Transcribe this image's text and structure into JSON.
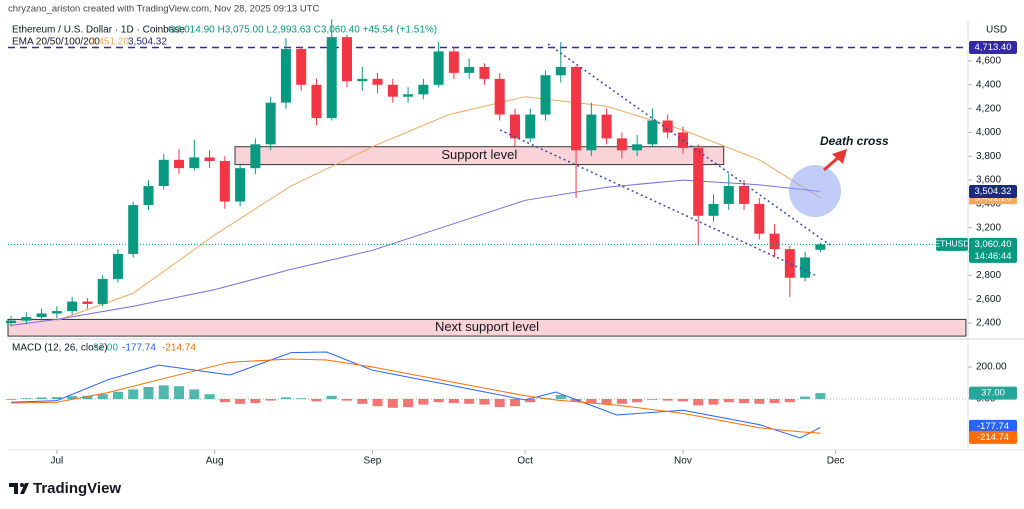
{
  "header": {
    "credit": "chryzano_ariston created with TradingView.com, Nov 28, 2025 09:13 UTC",
    "symbol": "Ethereum / U.S. Dollar · 1D · Coinbase",
    "ohlc": "O3,014.90 H3,075.00 L2,993.63 C3,060.40 +45.54 (+1.51%)",
    "indicator": "EMA 20/50/100/200"
  },
  "chart_data": [
    {
      "type": "candlestick",
      "currency": "USD",
      "x": [
        -9,
        -6,
        -3,
        0,
        3,
        6,
        9,
        12,
        15,
        18,
        21,
        24,
        27,
        30,
        33,
        36,
        39,
        42,
        45,
        48,
        51,
        54,
        57,
        60,
        63,
        66,
        69,
        72,
        75,
        78,
        81,
        84,
        87,
        90,
        93,
        96,
        99,
        102,
        105,
        108,
        111,
        114,
        117,
        120,
        123,
        126,
        129,
        132,
        135,
        138,
        141,
        144,
        147,
        150
      ],
      "open": [
        2400,
        2420,
        2450,
        2480,
        2500,
        2580,
        2560,
        2770,
        2980,
        3390,
        3550,
        3770,
        3700,
        3790,
        3760,
        3420,
        3700,
        3900,
        4250,
        4700,
        4400,
        4120,
        4800,
        4430,
        4450,
        4400,
        4300,
        4320,
        4400,
        4680,
        4500,
        4550,
        4450,
        4150,
        3950,
        4150,
        4480,
        4550,
        3850,
        4150,
        3950,
        3850,
        3900,
        4100,
        4000,
        3870,
        3300,
        3400,
        3550,
        3400,
        3150,
        3020,
        2780,
        3014.9
      ],
      "high": [
        2460,
        2490,
        2520,
        2540,
        2620,
        2610,
        2800,
        3020,
        3420,
        3600,
        3820,
        3860,
        3940,
        3850,
        3800,
        3740,
        3950,
        4300,
        4790,
        4720,
        4450,
        4950,
        4820,
        4550,
        4500,
        4450,
        4380,
        4450,
        4760,
        4720,
        4620,
        4580,
        4500,
        4200,
        4200,
        4520,
        4760,
        4560,
        4250,
        4200,
        4000,
        3980,
        4200,
        4150,
        4050,
        3900,
        3480,
        3650,
        3600,
        3450,
        3230,
        3050,
        3000,
        3075
      ],
      "low": [
        2370,
        2390,
        2420,
        2440,
        2470,
        2520,
        2540,
        2740,
        2950,
        3350,
        3520,
        3650,
        3680,
        3700,
        3360,
        3380,
        3650,
        3850,
        4200,
        4350,
        4060,
        4100,
        4380,
        4350,
        4330,
        4250,
        4250,
        4280,
        4380,
        4450,
        4450,
        4400,
        4100,
        3880,
        3920,
        4100,
        4420,
        3450,
        3800,
        3900,
        3780,
        3800,
        3880,
        3950,
        3820,
        3050,
        3250,
        3350,
        3350,
        3100,
        2950,
        2620,
        2750,
        2993.63
      ],
      "close": [
        2420,
        2450,
        2480,
        2500,
        2580,
        2560,
        2770,
        2980,
        3390,
        3550,
        3770,
        3700,
        3790,
        3760,
        3420,
        3700,
        3900,
        4250,
        4700,
        4400,
        4120,
        4800,
        4430,
        4450,
        4400,
        4300,
        4320,
        4400,
        4680,
        4500,
        4550,
        4450,
        4150,
        3950,
        4150,
        4480,
        4550,
        3850,
        4150,
        3950,
        3850,
        3900,
        4100,
        4000,
        3870,
        3300,
        3400,
        3550,
        3400,
        3150,
        3020,
        2780,
        2950,
        3060.4
      ],
      "up_color": "#089981",
      "down_color": "#f23645",
      "xlim": [
        -9.6,
        179
      ],
      "xticks": [
        {
          "value": 0,
          "label": "Jul"
        },
        {
          "value": 31,
          "label": "Aug"
        },
        {
          "value": 62,
          "label": "Sep"
        },
        {
          "value": 92,
          "label": "Oct"
        },
        {
          "value": 123,
          "label": "Nov"
        },
        {
          "value": 153,
          "label": "Dec"
        }
      ],
      "ylim": [
        2274,
        4944
      ],
      "yticks": [
        {
          "value": 2400,
          "label": "2,400"
        },
        {
          "value": 2600,
          "label": "2,600"
        },
        {
          "value": 2800,
          "label": "2,800"
        },
        {
          "value": 3000,
          "label": "3,000"
        },
        {
          "value": 3200,
          "label": "3,200"
        },
        {
          "value": 3400,
          "label": "3,400"
        },
        {
          "value": 3600,
          "label": "3,600"
        },
        {
          "value": 3800,
          "label": "3,800"
        },
        {
          "value": 4000,
          "label": "4,000"
        },
        {
          "value": 4200,
          "label": "4,200"
        },
        {
          "value": 4400,
          "label": "4,400"
        },
        {
          "value": 4600,
          "label": "4,600"
        }
      ],
      "lines": [
        {
          "color": "#f5a85f",
          "tag_color": "#f5a85f",
          "x": [
            0,
            15,
            31,
            46,
            62,
            77,
            92,
            108,
            123,
            138,
            150
          ],
          "values": [
            2420,
            2650,
            3140,
            3550,
            3880,
            4150,
            4300,
            4220,
            4020,
            3770,
            3451.2
          ],
          "last_label": "3,451.20"
        },
        {
          "color": "#7b6fe0",
          "tag_color": "#1b2a7a",
          "x": [
            -9,
            0,
            15,
            31,
            46,
            62,
            77,
            92,
            108,
            123,
            138,
            150
          ],
          "values": [
            2380,
            2430,
            2540,
            2680,
            2850,
            3010,
            3220,
            3430,
            3540,
            3600,
            3560,
            3504.32
          ],
          "last_label": "3,504.32"
        }
      ],
      "high_line": {
        "value": 4713.4,
        "label": "4,713.40",
        "color": "#3328a8"
      },
      "last_price": {
        "symbol": "ETHUSD",
        "label": "3,060.40",
        "countdown": "14:46:44"
      },
      "zones": [
        {
          "label": "Support level",
          "range": [
            3730,
            3880
          ],
          "xrange": [
            35,
            131
          ]
        },
        {
          "label": "Next support level",
          "range": [
            2290,
            2430
          ],
          "xrange": [
            -9.6,
            178.6
          ]
        }
      ],
      "annotation": "Death cross"
    },
    {
      "type": "macd",
      "title": "MACD (12, 26, close)",
      "x": [
        -9,
        -6,
        -3,
        0,
        3,
        6,
        9,
        12,
        15,
        18,
        21,
        24,
        27,
        30,
        33,
        36,
        39,
        42,
        45,
        48,
        51,
        54,
        57,
        60,
        63,
        66,
        69,
        72,
        75,
        78,
        81,
        84,
        87,
        90,
        93,
        96,
        99,
        102,
        105,
        108,
        111,
        114,
        117,
        120,
        123,
        126,
        129,
        132,
        135,
        138,
        141,
        144,
        147,
        150
      ],
      "histogram": [
        -5,
        5,
        10,
        12,
        18,
        20,
        30,
        45,
        60,
        75,
        85,
        80,
        60,
        30,
        -20,
        -30,
        -25,
        -10,
        10,
        5,
        -15,
        20,
        -10,
        -30,
        -45,
        -55,
        -50,
        -35,
        -20,
        -25,
        -30,
        -35,
        -50,
        -45,
        -20,
        5,
        25,
        -15,
        -25,
        -35,
        -30,
        -20,
        -5,
        -10,
        -15,
        -40,
        -35,
        -20,
        -25,
        -30,
        -25,
        -20,
        15,
        37
      ],
      "histogram_label": "37.00",
      "up_color": "#26a69a",
      "down_color": "#ef5350",
      "lines": [
        {
          "color": "#2962ff",
          "x": [
            -9,
            0,
            10,
            20,
            34,
            46,
            53,
            62,
            77,
            92,
            98,
            110,
            123,
            138,
            146,
            150
          ],
          "values": [
            -20,
            -10,
            120,
            212,
            150,
            290,
            294,
            180,
            88,
            -6,
            44,
            -100,
            -70,
            -160,
            -244,
            -177.74
          ],
          "last_label": "-177.74"
        },
        {
          "color": "#ff6d00",
          "x": [
            -9,
            0,
            10,
            20,
            34,
            46,
            53,
            62,
            77,
            92,
            98,
            110,
            123,
            138,
            146,
            150
          ],
          "values": [
            -25,
            -20,
            40,
            120,
            230,
            250,
            244,
            200,
            110,
            20,
            -6,
            -38,
            -90,
            -180,
            -205,
            -214.74
          ],
          "last_label": "-214.74"
        }
      ],
      "xlim": [
        -9.6,
        179
      ],
      "ylim": [
        -319,
        369
      ],
      "yticks": [
        {
          "value": 200,
          "label": "200.00"
        },
        {
          "value": 0,
          "label": "0.00"
        }
      ]
    }
  ],
  "footer": {
    "brand": "TradingView"
  }
}
